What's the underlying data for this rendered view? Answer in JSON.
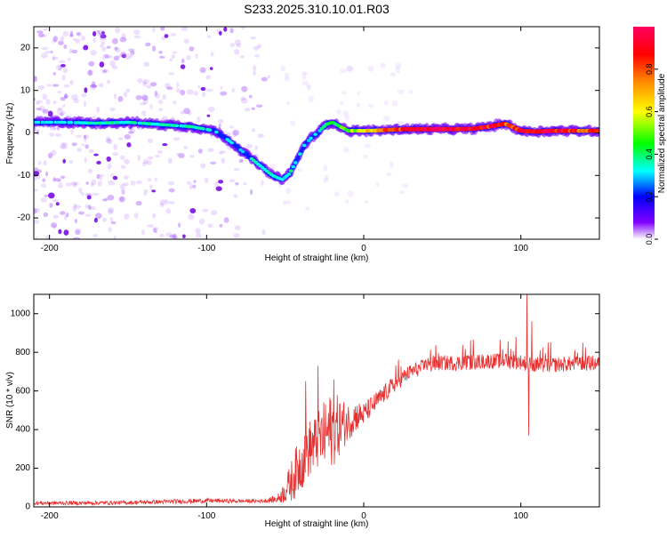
{
  "page_title": "S233.2025.310.10.01.R03",
  "colors": {
    "snr_line": "#e83030",
    "ridge_peak": "#ff2050",
    "scatter": "#b070ff",
    "axis": "#000000"
  },
  "colorbar": {
    "label": "Normalized spectral amplitude",
    "ticks": [
      "0.0",
      "0.2",
      "0.4",
      "0.6",
      "0.8"
    ],
    "tick_values": [
      0.0,
      0.2,
      0.4,
      0.6,
      0.8
    ],
    "range": [
      0,
      1
    ],
    "colormap": [
      "#ffffff",
      "#8000ff",
      "#0000ff",
      "#00ffff",
      "#00ff00",
      "#ffff00",
      "#ff8000",
      "#ff0000",
      "#ff0080"
    ]
  },
  "chart_data": [
    {
      "type": "heatmap",
      "title": "",
      "xlabel": "Height of straight line (km)",
      "ylabel": "Frequency (Hz)",
      "xlim": [
        -210,
        150
      ],
      "ylim": [
        -25,
        25
      ],
      "xticks": [
        -200,
        -100,
        0,
        100
      ],
      "xtick_labels": [
        "-200",
        "-100",
        "0",
        "100"
      ],
      "yticks": [
        -20,
        -10,
        0,
        10,
        20
      ],
      "ytick_labels": [
        "-20",
        "-10",
        "0",
        "10",
        "20"
      ],
      "ridge": {
        "x": [
          -210,
          -190,
          -170,
          -150,
          -130,
          -110,
          -95,
          -85,
          -75,
          -65,
          -58,
          -52,
          -47,
          -42,
          -38,
          -33,
          -28,
          -24,
          -20,
          -15,
          -10,
          -5,
          0,
          10,
          20,
          30,
          40,
          50,
          60,
          70,
          80,
          90,
          100,
          110,
          120,
          130,
          140,
          150
        ],
        "y": [
          2.5,
          2.5,
          2.3,
          2.5,
          2.0,
          1.5,
          0.5,
          -2.0,
          -5.0,
          -8.0,
          -10.0,
          -11.0,
          -9.5,
          -6.0,
          -3.0,
          -1.0,
          0.5,
          2.0,
          2.5,
          1.5,
          0.5,
          0.5,
          0.5,
          0.6,
          0.8,
          0.9,
          0.9,
          0.9,
          0.9,
          1.0,
          1.5,
          2.2,
          0.5,
          0.3,
          0.5,
          0.5,
          0.5,
          0.5
        ],
        "amplitude": [
          0.3,
          0.3,
          0.35,
          0.35,
          0.35,
          0.35,
          0.3,
          0.3,
          0.3,
          0.35,
          0.35,
          0.35,
          0.35,
          0.3,
          0.3,
          0.3,
          0.35,
          0.4,
          0.4,
          0.45,
          0.5,
          0.55,
          0.6,
          0.7,
          0.8,
          0.9,
          0.97,
          0.97,
          0.95,
          0.95,
          0.85,
          0.8,
          0.9,
          0.95,
          0.9,
          0.85,
          0.8,
          0.8
        ]
      }
    },
    {
      "type": "line",
      "title": "",
      "xlabel": "Height of straight line (km)",
      "ylabel": "SNR (10 * v/v)",
      "xlim": [
        -210,
        150
      ],
      "ylim": [
        0,
        1100
      ],
      "xticks": [
        -200,
        -100,
        0,
        100
      ],
      "xtick_labels": [
        "-200",
        "-100",
        "0",
        "100"
      ],
      "yticks": [
        0,
        200,
        400,
        600,
        800,
        1000
      ],
      "ytick_labels": [
        "0",
        "200",
        "400",
        "600",
        "800",
        "1000"
      ],
      "series": [
        {
          "name": "SNR",
          "color": "#e83030",
          "envelope_x": [
            -210,
            -180,
            -150,
            -120,
            -100,
            -80,
            -65,
            -55,
            -50,
            -45,
            -40,
            -35,
            -30,
            -25,
            -20,
            -15,
            -10,
            -5,
            0,
            10,
            20,
            30,
            40,
            50,
            60,
            70,
            80,
            90,
            100,
            110,
            120,
            130,
            140,
            150
          ],
          "envelope_y": [
            20,
            20,
            22,
            28,
            32,
            30,
            30,
            40,
            80,
            150,
            230,
            300,
            330,
            370,
            400,
            420,
            440,
            470,
            480,
            560,
            640,
            700,
            730,
            745,
            745,
            750,
            755,
            755,
            750,
            730,
            735,
            740,
            740,
            745
          ],
          "noise": [
            10,
            10,
            10,
            12,
            12,
            10,
            10,
            20,
            60,
            120,
            150,
            150,
            150,
            180,
            200,
            150,
            100,
            80,
            60,
            50,
            45,
            40,
            40,
            40,
            40,
            40,
            40,
            40,
            40,
            40,
            40,
            40,
            40,
            40
          ],
          "spikes": [
            {
              "x": -37,
              "y": 650
            },
            {
              "x": -29,
              "y": 730
            },
            {
              "x": -19,
              "y": 660
            },
            {
              "x": 97,
              "y": 880
            },
            {
              "x": 104,
              "y": 1100
            },
            {
              "x": 105,
              "y": 370
            },
            {
              "x": 107,
              "y": 960
            }
          ]
        }
      ]
    }
  ]
}
